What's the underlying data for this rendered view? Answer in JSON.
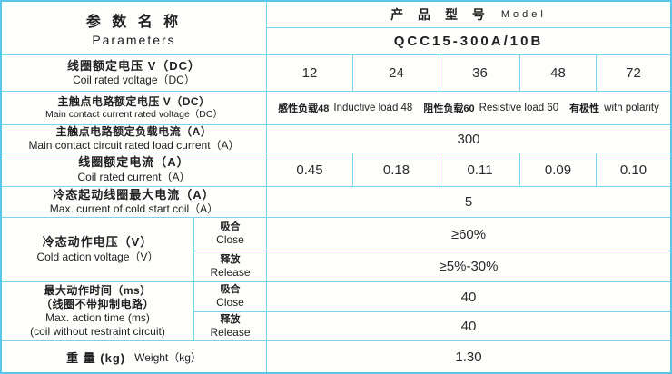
{
  "header": {
    "parameters_zh": "参 数 名 称",
    "parameters_en": "Parameters",
    "model_zh": "产 品 型 号",
    "model_en": "Model",
    "model_value": "QCC15-300A/10B"
  },
  "rows": {
    "coil_voltage": {
      "zh": "线圈额定电压 V（DC）",
      "en": "Coil rated voltage（DC）",
      "values": [
        "12",
        "24",
        "36",
        "48",
        "72"
      ]
    },
    "contact_voltage": {
      "zh": "主触点电路额定电压 V（DC）",
      "en": "Main contact current rated voltage（DC）",
      "segments": [
        "感性负载48",
        "Inductive load 48",
        "阻性负载60",
        "Resistive load 60",
        "有极性",
        "with polarity"
      ]
    },
    "load_current": {
      "zh": "主触点电路额定负载电流（A）",
      "en": "Main contact circuit rated load current（A）",
      "value": "300"
    },
    "coil_current": {
      "zh": "线圈额定电流（A）",
      "en": "Coil rated current（A）",
      "values": [
        "0.45",
        "0.18",
        "0.11",
        "0.09",
        "0.10"
      ]
    },
    "cold_start_current": {
      "zh": "冷态起动线圈最大电流（A）",
      "en": "Max. current of cold start coil（A）",
      "value": "5"
    },
    "cold_action_voltage": {
      "zh": "冷态动作电压（V）",
      "en": "Cold action voltage（V）",
      "close_zh": "吸合",
      "close_en": "Close",
      "close_value": "≥60%",
      "release_zh": "释放",
      "release_en": "Release",
      "release_value": "≥5%-30%"
    },
    "max_action_time": {
      "zh1": "最大动作时间（ms）",
      "zh2": "（线圈不带抑制电路）",
      "en1": "Max. action time (ms)",
      "en2": "(coil without restraint circuit)",
      "close_zh": "吸合",
      "close_en": "Close",
      "close_value": "40",
      "release_zh": "释放",
      "release_en": "Release",
      "release_value": "40"
    },
    "weight": {
      "zh": "重 量 (kg)",
      "en": "Weight（kg）",
      "value": "1.30"
    }
  },
  "colors": {
    "grid_line": "#7ad2ee",
    "outer_border": "#58c7e9",
    "cell_bg": "#fefefc",
    "text": "#212121"
  }
}
